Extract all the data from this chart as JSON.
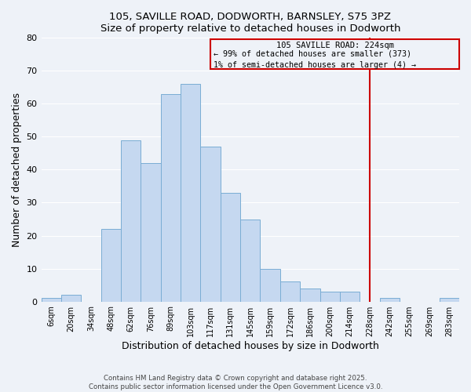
{
  "title": "105, SAVILLE ROAD, DODWORTH, BARNSLEY, S75 3PZ",
  "subtitle": "Size of property relative to detached houses in Dodworth",
  "xlabel": "Distribution of detached houses by size in Dodworth",
  "ylabel": "Number of detached properties",
  "bin_labels": [
    "6sqm",
    "20sqm",
    "34sqm",
    "48sqm",
    "62sqm",
    "76sqm",
    "89sqm",
    "103sqm",
    "117sqm",
    "131sqm",
    "145sqm",
    "159sqm",
    "172sqm",
    "186sqm",
    "200sqm",
    "214sqm",
    "228sqm",
    "242sqm",
    "255sqm",
    "269sqm",
    "283sqm"
  ],
  "bar_heights": [
    1,
    2,
    0,
    22,
    49,
    42,
    63,
    66,
    47,
    33,
    25,
    10,
    6,
    4,
    3,
    3,
    0,
    1,
    0,
    0,
    1
  ],
  "bar_color": "#c5d8f0",
  "bar_edge_color": "#7aadd4",
  "vline_color": "#cc0000",
  "annotation_title": "105 SAVILLE ROAD: 224sqm",
  "annotation_line1": "← 99% of detached houses are smaller (373)",
  "annotation_line2": "1% of semi-detached houses are larger (4) →",
  "annotation_box_color": "#cc0000",
  "ylim": [
    0,
    80
  ],
  "yticks": [
    0,
    10,
    20,
    30,
    40,
    50,
    60,
    70,
    80
  ],
  "footer1": "Contains HM Land Registry data © Crown copyright and database right 2025.",
  "footer2": "Contains public sector information licensed under the Open Government Licence v3.0.",
  "bg_color": "#eef2f8",
  "grid_color": "#ffffff"
}
